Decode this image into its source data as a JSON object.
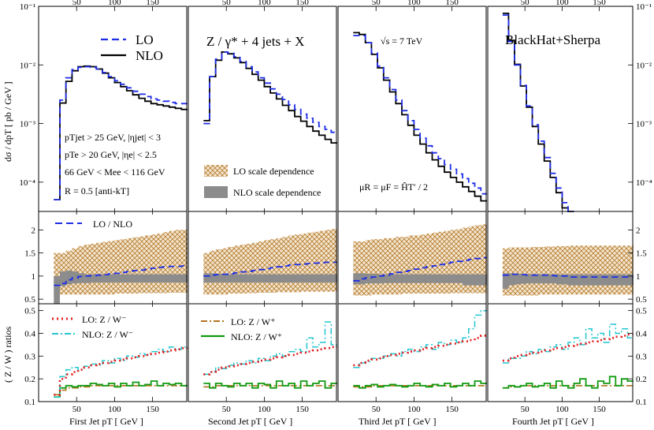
{
  "figure": {
    "process_title": "Z / γ* + 4 jets + X",
    "energy_label": "√s = 7 TeV",
    "collaboration": "BlackHat+Sherpa",
    "scale_choice": "μR = μF = ĤT′ / 2",
    "top_ylabel": "dσ / dpT [ pb / GeV ]",
    "mid_ylabel_unused": "",
    "bot_ylabel": "( Z / W ) ratios",
    "cuts": [
      "pTjet > 25 GeV, |ηjet| < 3",
      "pTe > 20 GeV, |ηe| < 2.5",
      "66 GeV < Mee < 116 GeV",
      "R = 0.5 [anti-kT]"
    ],
    "legend_top": {
      "lo": "LO",
      "nlo": "NLO"
    },
    "legend_band": {
      "lo": "LO scale dependence",
      "nlo": "NLO scale dependence"
    },
    "legend_mid": "LO / NLO",
    "legend_bot_left": {
      "lo": "LO:  Z / W⁻",
      "nlo": "NLO: Z / W⁻"
    },
    "legend_bot_right": {
      "lo": "LO:   Z / W⁺",
      "nlo": "NLO: Z / W⁺"
    },
    "panel_xlabels": [
      "First  Jet  pT  [ GeV ]",
      "Second  Jet  pT  [ GeV ]",
      "Third  Jet  pT  [ GeV ]",
      "Fourth  Jet  pT  [ GeV ]"
    ],
    "top_ticks_x": [
      "50",
      "100",
      "150"
    ],
    "bottom_ticks_x": [
      "50",
      "100",
      "150"
    ],
    "log_ticks": [
      "10⁻⁴",
      "10⁻³",
      "10⁻²",
      "10⁻¹"
    ],
    "mid_ticks": [
      "0.5",
      "1",
      "1.5",
      "2"
    ],
    "bot_ticks": [
      "0.1",
      "0.2",
      "0.3",
      "0.4",
      "0.5"
    ]
  },
  "chart_data": {
    "type": "line",
    "title": "Z / γ* + 4 jets + X, √s = 7 TeV, BlackHat+Sherpa",
    "x_unit": "GeV",
    "x_range": [
      0,
      195
    ],
    "top_ylim_log10": [
      -4.5,
      -1
    ],
    "mid_ylim": [
      0.4,
      2.4
    ],
    "bot_ylim": [
      0.1,
      0.53
    ],
    "colors": {
      "lo": "#1f2ee6",
      "nlo": "#000000",
      "lo_band": "#c8862e",
      "nlo_band": "#8c8c8c",
      "ratio_lo_minus": "#e32020",
      "ratio_nlo_minus": "#22c6cf",
      "ratio_lo_plus": "#b2741f",
      "ratio_nlo_plus": "#109a10"
    },
    "panels": [
      {
        "name": "First Jet",
        "x_start": 20,
        "x_step": 8,
        "x_end": 196,
        "lo_log10": [
          -4.3,
          -2.6,
          -2.22,
          -2.08,
          -2.04,
          -2.03,
          -2.04,
          -2.07,
          -2.13,
          -2.2,
          -2.27,
          -2.33,
          -2.39,
          -2.45,
          -2.5,
          -2.54,
          -2.58,
          -2.6,
          -2.62,
          -2.64,
          -2.66,
          -2.66
        ],
        "nlo_log10": [
          -4.3,
          -2.65,
          -2.28,
          -2.1,
          -2.03,
          -2.02,
          -2.03,
          -2.07,
          -2.14,
          -2.22,
          -2.3,
          -2.37,
          -2.44,
          -2.51,
          -2.57,
          -2.62,
          -2.66,
          -2.68,
          -2.7,
          -2.72,
          -2.74,
          -2.76
        ],
        "lo_over_nlo": [
          0.8,
          0.84,
          0.92,
          0.96,
          0.99,
          1.0,
          1.01,
          1.02,
          1.03,
          1.05,
          1.06,
          1.08,
          1.1,
          1.12,
          1.13,
          1.15,
          1.17,
          1.19,
          1.2,
          1.21,
          1.21,
          1.22
        ],
        "lo_band_lo": [
          0.55,
          0.6,
          0.6,
          0.6,
          0.6,
          0.6,
          0.6,
          0.6,
          0.6,
          0.6,
          0.62,
          0.62,
          0.62,
          0.62,
          0.63,
          0.63,
          0.63,
          0.63,
          0.63,
          0.64,
          0.64,
          0.64
        ],
        "lo_band_hi": [
          1.5,
          1.5,
          1.55,
          1.6,
          1.65,
          1.68,
          1.7,
          1.72,
          1.74,
          1.76,
          1.78,
          1.8,
          1.82,
          1.84,
          1.86,
          1.88,
          1.9,
          1.92,
          1.95,
          1.98,
          2.0,
          2.0
        ],
        "nlo_band_lo": [
          0.4,
          0.78,
          0.82,
          0.84,
          0.85,
          0.85,
          0.86,
          0.86,
          0.86,
          0.86,
          0.86,
          0.86,
          0.86,
          0.86,
          0.86,
          0.86,
          0.86,
          0.86,
          0.86,
          0.86,
          0.86,
          0.86
        ],
        "nlo_band_hi": [
          1.0,
          1.1,
          1.12,
          1.1,
          1.06,
          1.04,
          1.04,
          1.04,
          1.04,
          1.04,
          1.04,
          1.04,
          1.04,
          1.04,
          1.04,
          1.04,
          1.04,
          1.04,
          1.04,
          1.04,
          1.04,
          1.04
        ],
        "ratio_minus_lo": [
          0.13,
          0.2,
          0.22,
          0.23,
          0.24,
          0.25,
          0.26,
          0.265,
          0.27,
          0.275,
          0.28,
          0.285,
          0.29,
          0.295,
          0.3,
          0.305,
          0.31,
          0.315,
          0.32,
          0.325,
          0.33,
          0.335
        ],
        "ratio_minus_nlo": [
          0.12,
          0.21,
          0.24,
          0.25,
          0.24,
          0.255,
          0.265,
          0.26,
          0.28,
          0.27,
          0.29,
          0.28,
          0.3,
          0.295,
          0.31,
          0.305,
          0.32,
          0.33,
          0.32,
          0.34,
          0.33,
          0.34
        ],
        "ratio_plus_lo": [
          0.13,
          0.15,
          0.16,
          0.16,
          0.165,
          0.165,
          0.17,
          0.17,
          0.17,
          0.17,
          0.17,
          0.17,
          0.17,
          0.17,
          0.17,
          0.17,
          0.17,
          0.17,
          0.17,
          0.17,
          0.17,
          0.17
        ],
        "ratio_plus_nlo": [
          0.12,
          0.16,
          0.17,
          0.165,
          0.17,
          0.17,
          0.18,
          0.175,
          0.17,
          0.18,
          0.165,
          0.18,
          0.17,
          0.185,
          0.17,
          0.175,
          0.19,
          0.17,
          0.18,
          0.175,
          0.18,
          0.17
        ]
      },
      {
        "name": "Second Jet",
        "x_start": 20,
        "x_step": 8,
        "x_end": 196,
        "lo_log10": [
          -3.0,
          -2.2,
          -1.9,
          -1.78,
          -1.8,
          -1.86,
          -1.94,
          -2.03,
          -2.12,
          -2.22,
          -2.31,
          -2.41,
          -2.5,
          -2.59,
          -2.68,
          -2.76,
          -2.84,
          -2.91,
          -2.98,
          -3.05,
          -3.1,
          -3.15
        ],
        "nlo_log10": [
          -2.95,
          -2.2,
          -1.92,
          -1.78,
          -1.81,
          -1.88,
          -1.96,
          -2.06,
          -2.16,
          -2.26,
          -2.37,
          -2.48,
          -2.58,
          -2.69,
          -2.78,
          -2.88,
          -2.96,
          -3.05,
          -3.13,
          -3.2,
          -3.27,
          -3.33
        ],
        "lo_over_nlo": [
          1.0,
          1.02,
          1.03,
          1.04,
          1.05,
          1.07,
          1.09,
          1.1,
          1.12,
          1.14,
          1.16,
          1.18,
          1.2,
          1.22,
          1.24,
          1.25,
          1.26,
          1.27,
          1.28,
          1.29,
          1.3,
          1.3
        ],
        "lo_band_lo": [
          0.6,
          0.6,
          0.6,
          0.6,
          0.62,
          0.62,
          0.62,
          0.63,
          0.63,
          0.64,
          0.64,
          0.64,
          0.65,
          0.65,
          0.65,
          0.65,
          0.66,
          0.66,
          0.66,
          0.66,
          0.66,
          0.66
        ],
        "lo_band_hi": [
          1.5,
          1.55,
          1.58,
          1.6,
          1.63,
          1.66,
          1.68,
          1.7,
          1.72,
          1.75,
          1.78,
          1.8,
          1.82,
          1.85,
          1.88,
          1.9,
          1.92,
          1.94,
          1.96,
          1.98,
          2.0,
          2.02
        ],
        "nlo_band_lo": [
          0.86,
          0.86,
          0.86,
          0.86,
          0.86,
          0.86,
          0.86,
          0.86,
          0.86,
          0.86,
          0.86,
          0.86,
          0.86,
          0.86,
          0.86,
          0.86,
          0.86,
          0.86,
          0.86,
          0.86,
          0.86,
          0.86
        ],
        "nlo_band_hi": [
          1.06,
          1.06,
          1.05,
          1.04,
          1.04,
          1.04,
          1.04,
          1.04,
          1.04,
          1.04,
          1.04,
          1.04,
          1.04,
          1.04,
          1.04,
          1.04,
          1.04,
          1.04,
          1.04,
          1.04,
          1.04,
          1.04
        ],
        "ratio_minus_lo": [
          0.22,
          0.23,
          0.24,
          0.25,
          0.255,
          0.26,
          0.265,
          0.27,
          0.275,
          0.28,
          0.285,
          0.29,
          0.295,
          0.3,
          0.305,
          0.31,
          0.315,
          0.32,
          0.325,
          0.33,
          0.335,
          0.34
        ],
        "ratio_minus_nlo": [
          0.22,
          0.23,
          0.25,
          0.245,
          0.26,
          0.27,
          0.265,
          0.28,
          0.27,
          0.29,
          0.28,
          0.3,
          0.31,
          0.3,
          0.32,
          0.33,
          0.32,
          0.38,
          0.34,
          0.36,
          0.45,
          0.35
        ],
        "ratio_plus_lo": [
          0.165,
          0.165,
          0.17,
          0.17,
          0.17,
          0.17,
          0.17,
          0.17,
          0.17,
          0.17,
          0.17,
          0.17,
          0.17,
          0.17,
          0.17,
          0.17,
          0.17,
          0.17,
          0.17,
          0.17,
          0.17,
          0.17
        ],
        "ratio_plus_nlo": [
          0.18,
          0.16,
          0.18,
          0.17,
          0.165,
          0.18,
          0.17,
          0.18,
          0.16,
          0.18,
          0.175,
          0.16,
          0.19,
          0.17,
          0.18,
          0.16,
          0.19,
          0.17,
          0.18,
          0.19,
          0.16,
          0.18
        ]
      },
      {
        "name": "Third Jet",
        "x_start": 20,
        "x_step": 8,
        "x_end": 196,
        "lo_log10": [
          -1.5,
          -1.5,
          -1.62,
          -1.8,
          -2.02,
          -2.22,
          -2.42,
          -2.6,
          -2.78,
          -2.95,
          -3.1,
          -3.25,
          -3.38,
          -3.5,
          -3.6,
          -3.7,
          -3.78,
          -3.86,
          -3.94,
          -4.02,
          -4.1,
          -4.2
        ],
        "nlo_log10": [
          -1.45,
          -1.48,
          -1.62,
          -1.82,
          -2.05,
          -2.26,
          -2.46,
          -2.66,
          -2.85,
          -3.03,
          -3.2,
          -3.35,
          -3.5,
          -3.62,
          -3.73,
          -3.83,
          -3.92,
          -4.0,
          -4.08,
          -4.16,
          -4.24,
          -4.32
        ],
        "lo_over_nlo": [
          0.9,
          0.94,
          0.96,
          0.98,
          1.0,
          1.02,
          1.05,
          1.08,
          1.1,
          1.12,
          1.15,
          1.18,
          1.2,
          1.22,
          1.25,
          1.28,
          1.3,
          1.32,
          1.34,
          1.36,
          1.38,
          1.4
        ],
        "lo_band_lo": [
          0.58,
          0.58,
          0.58,
          0.6,
          0.6,
          0.6,
          0.6,
          0.6,
          0.62,
          0.62,
          0.62,
          0.62,
          0.62,
          0.62,
          0.62,
          0.62,
          0.63,
          0.63,
          0.63,
          0.63,
          0.63,
          0.63
        ],
        "lo_band_hi": [
          1.75,
          1.75,
          1.78,
          1.8,
          1.8,
          1.82,
          1.82,
          1.85,
          1.85,
          1.88,
          1.88,
          1.9,
          1.92,
          1.94,
          1.96,
          1.98,
          2.0,
          2.02,
          2.05,
          2.08,
          2.1,
          2.12
        ],
        "nlo_band_lo": [
          0.82,
          0.82,
          0.84,
          0.84,
          0.84,
          0.85,
          0.85,
          0.85,
          0.85,
          0.85,
          0.85,
          0.85,
          0.85,
          0.85,
          0.85,
          0.85,
          0.85,
          0.85,
          0.8,
          0.8,
          0.8,
          0.8
        ],
        "nlo_band_hi": [
          1.06,
          1.06,
          1.05,
          1.05,
          1.04,
          1.04,
          1.04,
          1.04,
          1.04,
          1.04,
          1.04,
          1.04,
          1.04,
          1.04,
          1.04,
          1.04,
          1.04,
          1.04,
          1.04,
          1.04,
          1.04,
          1.04
        ],
        "ratio_minus_lo": [
          0.26,
          0.27,
          0.28,
          0.285,
          0.29,
          0.3,
          0.305,
          0.31,
          0.315,
          0.32,
          0.325,
          0.33,
          0.335,
          0.34,
          0.345,
          0.35,
          0.355,
          0.36,
          0.365,
          0.37,
          0.38,
          0.39
        ],
        "ratio_minus_nlo": [
          0.25,
          0.27,
          0.275,
          0.29,
          0.29,
          0.3,
          0.31,
          0.3,
          0.32,
          0.33,
          0.32,
          0.34,
          0.35,
          0.33,
          0.36,
          0.35,
          0.37,
          0.36,
          0.38,
          0.42,
          0.48,
          0.5
        ],
        "ratio_plus_lo": [
          0.165,
          0.165,
          0.165,
          0.17,
          0.17,
          0.17,
          0.17,
          0.17,
          0.17,
          0.17,
          0.17,
          0.17,
          0.17,
          0.17,
          0.17,
          0.17,
          0.17,
          0.17,
          0.17,
          0.17,
          0.17,
          0.17
        ],
        "ratio_plus_nlo": [
          0.17,
          0.16,
          0.17,
          0.175,
          0.165,
          0.17,
          0.175,
          0.17,
          0.165,
          0.17,
          0.18,
          0.17,
          0.165,
          0.175,
          0.17,
          0.18,
          0.165,
          0.17,
          0.18,
          0.17,
          0.19,
          0.18
        ]
      },
      {
        "name": "Fourth Jet",
        "x_start": 20,
        "x_step": 8,
        "x_end": 196,
        "lo_log10": [
          -1.15,
          -1.6,
          -2.0,
          -2.35,
          -2.7,
          -3.02,
          -3.3,
          -3.58,
          -3.85,
          -4.1,
          -4.35,
          -4.6
        ],
        "nlo_log10": [
          -1.12,
          -1.58,
          -1.99,
          -2.36,
          -2.72,
          -3.05,
          -3.35,
          -3.64,
          -3.92,
          -4.18,
          -4.44,
          -4.7
        ],
        "lo_over_nlo": [
          1.02,
          1.04,
          1.04,
          1.03,
          1.02,
          1.02,
          1.02,
          1.02,
          1.01,
          1.0,
          1.0,
          0.98,
          0.98,
          0.98,
          0.98,
          0.98,
          0.98,
          0.98,
          0.98,
          0.98,
          0.98,
          0.98
        ],
        "lo_band_lo": [
          0.58,
          0.58,
          0.58,
          0.58,
          0.58,
          0.58,
          0.6,
          0.6,
          0.6,
          0.6,
          0.6,
          0.6,
          0.6,
          0.6,
          0.6,
          0.6,
          0.6,
          0.6,
          0.6,
          0.6,
          0.6,
          0.6
        ],
        "lo_band_hi": [
          1.6,
          1.62,
          1.62,
          1.62,
          1.62,
          1.63,
          1.63,
          1.64,
          1.64,
          1.65,
          1.65,
          1.66,
          1.66,
          1.66,
          1.66,
          1.66,
          1.66,
          1.66,
          1.66,
          1.66,
          1.66,
          1.66
        ],
        "nlo_band_lo": [
          0.72,
          0.8,
          0.82,
          0.83,
          0.84,
          0.84,
          0.84,
          0.84,
          0.84,
          0.82,
          0.82,
          0.8,
          0.8,
          0.8,
          0.8,
          0.8,
          0.8,
          0.8,
          0.8,
          0.8,
          0.8,
          0.8
        ],
        "nlo_band_hi": [
          1.06,
          1.06,
          1.05,
          1.05,
          1.04,
          1.04,
          1.04,
          1.04,
          1.04,
          1.04,
          1.04,
          1.04,
          1.04,
          1.04,
          1.04,
          1.04,
          1.04,
          1.04,
          1.04,
          1.04,
          1.04,
          1.04
        ],
        "ratio_minus_lo": [
          0.28,
          0.29,
          0.3,
          0.305,
          0.31,
          0.315,
          0.32,
          0.325,
          0.33,
          0.335,
          0.34,
          0.345,
          0.35,
          0.355,
          0.36,
          0.365,
          0.37,
          0.375,
          0.38,
          0.385,
          0.39,
          0.395
        ],
        "ratio_minus_nlo": [
          0.27,
          0.29,
          0.29,
          0.3,
          0.32,
          0.31,
          0.33,
          0.32,
          0.34,
          0.35,
          0.33,
          0.36,
          0.38,
          0.35,
          0.42,
          0.38,
          0.4,
          0.36,
          0.44,
          0.4,
          0.42,
          0.38
        ],
        "ratio_plus_lo": [
          0.16,
          0.165,
          0.165,
          0.17,
          0.17,
          0.17,
          0.17,
          0.17,
          0.17,
          0.17,
          0.17,
          0.17,
          0.17,
          0.17,
          0.17,
          0.17,
          0.17,
          0.17,
          0.17,
          0.17,
          0.17,
          0.17
        ],
        "ratio_plus_nlo": [
          0.16,
          0.17,
          0.165,
          0.17,
          0.18,
          0.165,
          0.17,
          0.18,
          0.16,
          0.19,
          0.17,
          0.16,
          0.18,
          0.2,
          0.17,
          0.16,
          0.19,
          0.18,
          0.21,
          0.17,
          0.2,
          0.19
        ]
      }
    ]
  }
}
